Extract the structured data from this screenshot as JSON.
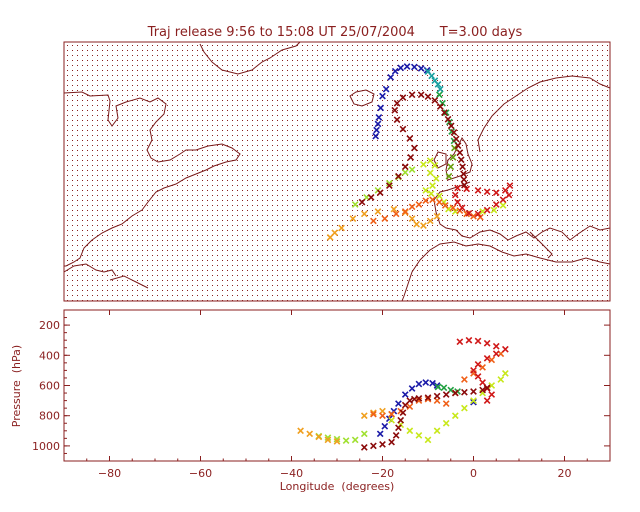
{
  "colors": {
    "frame": "#8a1f1f",
    "coast": "#7a1a1a",
    "grid_dots": "#8a1f1f",
    "background": "#ffffff"
  },
  "chart_data": [
    {
      "type": "scatter",
      "title": "Traj release 9:56 to 15:08 UT 25/07/2004      T=3.00 days",
      "xlim": [
        -90,
        30
      ],
      "ylim": [
        20,
        75
      ],
      "projection": "plate carree map with coastlines and dotted lat/lon grid",
      "marker": "x",
      "grid": true,
      "series": [
        {
          "color": "#1a1aa8",
          "points": [
            [
              -21.5,
              55
            ],
            [
              -21.3,
              56.3
            ],
            [
              -21,
              57.6
            ],
            [
              -20.8,
              59
            ],
            [
              -20.4,
              61
            ],
            [
              -20,
              63.5
            ],
            [
              -19.2,
              65
            ],
            [
              -18.2,
              67.5
            ],
            [
              -17.2,
              68.8
            ],
            [
              -16,
              69.5
            ],
            [
              -14.6,
              69.8
            ],
            [
              -13,
              69.7
            ],
            [
              -11.5,
              69.4
            ],
            [
              -10.2,
              69
            ]
          ]
        },
        {
          "color": "#1aa0a0",
          "points": [
            [
              -10,
              68.7
            ],
            [
              -9.2,
              67.8
            ],
            [
              -8.5,
              66.8
            ],
            [
              -7.8,
              66
            ],
            [
              -7.3,
              65
            ]
          ]
        },
        {
          "color": "#20a040",
          "points": [
            [
              -7.5,
              63.8
            ],
            [
              -6.8,
              62
            ],
            [
              -6,
              60
            ],
            [
              -5.3,
              58
            ],
            [
              -4.8,
              56
            ],
            [
              -4.3,
              54
            ]
          ]
        },
        {
          "color": "#6aa010",
          "points": [
            [
              -4.2,
              52.5
            ],
            [
              -4.5,
              50.5
            ],
            [
              -5,
              48.5
            ],
            [
              -5.4,
              46.5
            ]
          ]
        },
        {
          "color": "#c8e81a",
          "points": [
            [
              -11,
              49
            ],
            [
              -9.5,
              49.8
            ],
            [
              -8.5,
              48.8
            ],
            [
              -9.5,
              47.2
            ],
            [
              -8.2,
              46
            ],
            [
              -9,
              44.5
            ],
            [
              -10.5,
              43.5
            ],
            [
              -9.3,
              42.8
            ],
            [
              -7.5,
              42.3
            ],
            [
              -6.5,
              41
            ],
            [
              -5.5,
              39.5
            ],
            [
              -4,
              39
            ],
            [
              -1.5,
              38.5
            ],
            [
              2,
              39
            ],
            [
              4.5,
              39.3
            ],
            [
              6.5,
              40.3
            ]
          ]
        },
        {
          "color": "#a0e030",
          "points": [
            [
              -26,
              40.5
            ],
            [
              -23.5,
              42
            ],
            [
              -21,
              43.5
            ],
            [
              -18.5,
              45
            ],
            [
              -16.5,
              46.3
            ],
            [
              -15,
              47.3
            ],
            [
              -13.5,
              47.9
            ]
          ]
        },
        {
          "color": "#f0a020",
          "points": [
            [
              -31.5,
              33.5
            ],
            [
              -30.5,
              34.5
            ],
            [
              -29,
              35.5
            ],
            [
              -26.5,
              37.5
            ],
            [
              -24,
              38.5
            ],
            [
              -21,
              39
            ],
            [
              -17.5,
              39.5
            ],
            [
              -15,
              38.8
            ],
            [
              -13.5,
              37.5
            ],
            [
              -12.5,
              36.3
            ],
            [
              -11,
              36
            ],
            [
              -9.5,
              37
            ],
            [
              -8,
              38
            ]
          ]
        },
        {
          "color": "#f06018",
          "points": [
            [
              -22,
              37
            ],
            [
              -19.5,
              37.5
            ],
            [
              -17,
              38.5
            ],
            [
              -15,
              39
            ],
            [
              -13.5,
              40
            ],
            [
              -12,
              40.5
            ],
            [
              -10.5,
              41.3
            ],
            [
              -9,
              41.5
            ],
            [
              -7.5,
              41
            ],
            [
              -6.2,
              40.3
            ],
            [
              -4.5,
              39.8
            ],
            [
              -3,
              39.2
            ],
            [
              -1.5,
              38.5
            ],
            [
              0,
              38
            ],
            [
              1.5,
              37.8
            ]
          ]
        },
        {
          "color": "#d01818",
          "points": [
            [
              -3.5,
              44
            ],
            [
              -1.5,
              43.8
            ],
            [
              1,
              43.5
            ],
            [
              3,
              43.2
            ],
            [
              5,
              43
            ],
            [
              7,
              43.5
            ],
            [
              8,
              44.5
            ],
            [
              7.8,
              42.5
            ],
            [
              6.5,
              41.5
            ],
            [
              5,
              40.5
            ],
            [
              3,
              39.3
            ],
            [
              1,
              38.5
            ],
            [
              -1,
              38.6
            ],
            [
              -2.5,
              39.8
            ],
            [
              -3.5,
              41
            ],
            [
              -4,
              42.5
            ]
          ]
        },
        {
          "color": "#8a0a0a",
          "points": [
            [
              -24.5,
              41
            ],
            [
              -22.5,
              42
            ],
            [
              -20.5,
              43
            ],
            [
              -18.5,
              44.5
            ],
            [
              -16.5,
              46.5
            ],
            [
              -15,
              48.5
            ],
            [
              -13.8,
              50.5
            ],
            [
              -13,
              52.5
            ],
            [
              -14,
              54.5
            ],
            [
              -15.5,
              56.5
            ],
            [
              -16.8,
              58.5
            ],
            [
              -17.3,
              60.5
            ],
            [
              -16.8,
              62
            ],
            [
              -15.5,
              63.2
            ],
            [
              -13.5,
              63.8
            ],
            [
              -11.5,
              63.8
            ],
            [
              -10,
              63.4
            ],
            [
              -8.5,
              62.6
            ],
            [
              -7.3,
              61.3
            ],
            [
              -6.4,
              60
            ],
            [
              -5.6,
              58.6
            ],
            [
              -4.9,
              57.2
            ],
            [
              -4.3,
              55.8
            ],
            [
              -3.8,
              54.4
            ],
            [
              -3.4,
              53
            ],
            [
              -3,
              51.5
            ],
            [
              -2.7,
              50
            ],
            [
              -2.4,
              48.5
            ],
            [
              -2.2,
              47
            ],
            [
              -2.1,
              45.8
            ],
            [
              -2,
              44.6
            ]
          ]
        }
      ]
    },
    {
      "type": "scatter",
      "xlabel": "Longitude  (degrees)",
      "ylabel": "Pressure  (hPa)",
      "xlim": [
        -90,
        30
      ],
      "ylim": [
        1100,
        100
      ],
      "xticks": [
        -80,
        -60,
        -40,
        -20,
        0,
        20
      ],
      "yticks": [
        200,
        400,
        600,
        800,
        1000
      ],
      "marker": "x",
      "series": [
        {
          "color": "#1a1aa8",
          "points": [
            [
              -20.5,
              920
            ],
            [
              -19.5,
              870
            ],
            [
              -18.5,
              820
            ],
            [
              -17.5,
              770
            ],
            [
              -16.5,
              720
            ],
            [
              -15,
              660
            ],
            [
              -13.5,
              620
            ],
            [
              -12,
              590
            ],
            [
              -10.5,
              580
            ],
            [
              -9,
              585
            ],
            [
              -8,
              600
            ],
            [
              0,
              710
            ]
          ]
        },
        {
          "color": "#20a040",
          "points": [
            [
              -7.8,
              610
            ],
            [
              -6.5,
              615
            ],
            [
              -5,
              630
            ],
            [
              -3.5,
              640
            ]
          ]
        },
        {
          "color": "#c8e81a",
          "points": [
            [
              -18,
              830
            ],
            [
              -16,
              860
            ],
            [
              -14,
              900
            ],
            [
              -12,
              930
            ],
            [
              -10,
              960
            ],
            [
              -8,
              900
            ],
            [
              -6,
              850
            ],
            [
              -4,
              800
            ],
            [
              -2,
              750
            ],
            [
              0,
              700
            ],
            [
              2,
              650
            ],
            [
              4,
              600
            ],
            [
              6,
              560
            ],
            [
              7,
              520
            ]
          ]
        },
        {
          "color": "#a0e030",
          "points": [
            [
              -34,
              935
            ],
            [
              -32,
              945
            ],
            [
              -30,
              955
            ],
            [
              -28,
              965
            ],
            [
              -26,
              960
            ],
            [
              -24,
              920
            ]
          ]
        },
        {
          "color": "#f0a020",
          "points": [
            [
              -38,
              900
            ],
            [
              -36,
              920
            ],
            [
              -34,
              940
            ],
            [
              -32,
              960
            ],
            [
              -30,
              970
            ],
            [
              -24,
              800
            ],
            [
              -22,
              780
            ],
            [
              -20,
              770
            ],
            [
              -18,
              790
            ]
          ]
        },
        {
          "color": "#f06018",
          "points": [
            [
              -22,
              790
            ],
            [
              -20,
              800
            ],
            [
              -18,
              790
            ],
            [
              -16,
              770
            ],
            [
              -14,
              740
            ],
            [
              -12,
              700
            ],
            [
              -10,
              690
            ],
            [
              -8,
              700
            ],
            [
              -6,
              720
            ],
            [
              -4,
              650
            ],
            [
              -2,
              560
            ],
            [
              0,
              520
            ],
            [
              2,
              480
            ],
            [
              4,
              430
            ],
            [
              6,
              390
            ]
          ]
        },
        {
          "color": "#d01818",
          "points": [
            [
              -3,
              310
            ],
            [
              -1,
              300
            ],
            [
              1,
              305
            ],
            [
              3,
              320
            ],
            [
              5,
              340
            ],
            [
              7,
              360
            ],
            [
              5,
              390
            ],
            [
              3,
              420
            ],
            [
              1,
              460
            ],
            [
              0,
              500
            ],
            [
              1,
              540
            ],
            [
              2,
              580
            ],
            [
              3,
              620
            ],
            [
              4,
              660
            ],
            [
              3,
              700
            ]
          ]
        },
        {
          "color": "#8a0a0a",
          "points": [
            [
              -24,
              1010
            ],
            [
              -22,
              1000
            ],
            [
              -20,
              990
            ],
            [
              -18,
              975
            ],
            [
              -17,
              930
            ],
            [
              -16.5,
              880
            ],
            [
              -16,
              830
            ],
            [
              -15.5,
              780
            ],
            [
              -15,
              730
            ],
            [
              -14,
              700
            ],
            [
              -13,
              690
            ],
            [
              -12,
              685
            ],
            [
              -10,
              680
            ],
            [
              -8,
              670
            ],
            [
              -6,
              660
            ],
            [
              -4,
              650
            ],
            [
              -2,
              645
            ],
            [
              0,
              640
            ],
            [
              2,
              630
            ],
            [
              3,
              615
            ]
          ]
        }
      ]
    }
  ]
}
